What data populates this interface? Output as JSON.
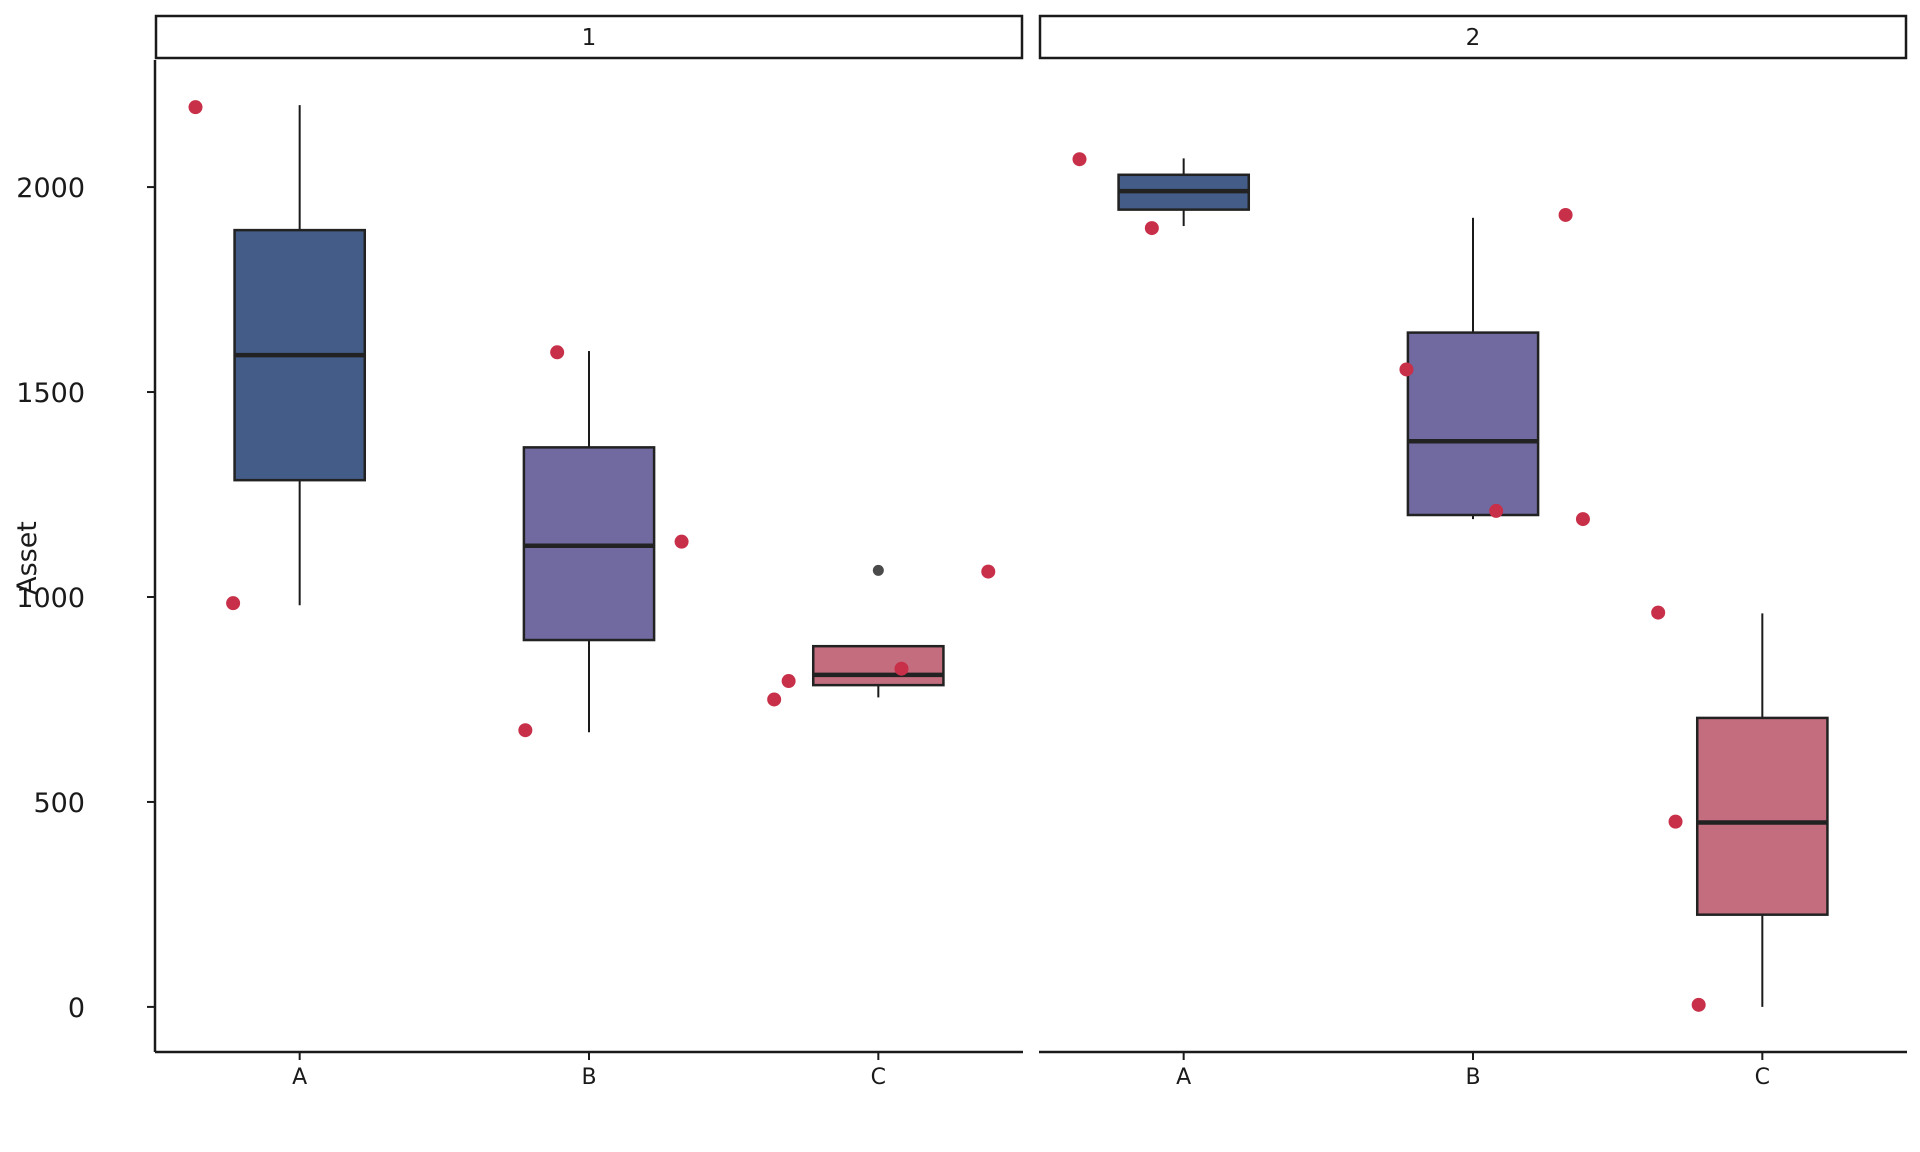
{
  "chart_data": {
    "type": "box",
    "ylabel": "Asset",
    "xlabel": "",
    "title": "",
    "y_ticks": [
      0,
      500,
      1000,
      1500,
      2000
    ],
    "ylim": [
      -110,
      2310
    ],
    "categories": [
      "A",
      "B",
      "C"
    ],
    "colors": {
      "A": "#445d88",
      "B": "#706aa0",
      "C": "#c46d7e",
      "points": "#c8304a",
      "outliers": "#4a4a4a"
    },
    "panels": [
      {
        "strip_label": "1",
        "boxes": [
          {
            "category": "A",
            "whisker_low": 980,
            "q1": 1285,
            "median": 1590,
            "q3": 1895,
            "whisker_high": 2200,
            "outliers": []
          },
          {
            "category": "B",
            "whisker_low": 670,
            "q1": 895,
            "median": 1125,
            "q3": 1365,
            "whisker_high": 1600,
            "outliers": []
          },
          {
            "category": "C",
            "whisker_low": 755,
            "q1": 785,
            "median": 810,
            "q3": 880,
            "whisker_high": 880,
            "outliers": [
              1065
            ]
          }
        ],
        "points": [
          {
            "category": "A",
            "offset": -0.36,
            "y": 2195
          },
          {
            "category": "A",
            "offset": -0.23,
            "y": 985
          },
          {
            "category": "B",
            "offset": -0.22,
            "y": 675
          },
          {
            "category": "B",
            "offset": -0.11,
            "y": 1597
          },
          {
            "category": "B",
            "offset": 0.32,
            "y": 1135
          },
          {
            "category": "C",
            "offset": -0.36,
            "y": 750
          },
          {
            "category": "C",
            "offset": -0.31,
            "y": 795
          },
          {
            "category": "C",
            "offset": 0.08,
            "y": 825
          },
          {
            "category": "C",
            "offset": 0.38,
            "y": 1062
          }
        ]
      },
      {
        "strip_label": "2",
        "boxes": [
          {
            "category": "A",
            "whisker_low": 1905,
            "q1": 1945,
            "median": 1990,
            "q3": 2030,
            "whisker_high": 2070,
            "outliers": []
          },
          {
            "category": "B",
            "whisker_low": 1190,
            "q1": 1200,
            "median": 1380,
            "q3": 1645,
            "whisker_high": 1925,
            "outliers": []
          },
          {
            "category": "C",
            "whisker_low": 0,
            "q1": 225,
            "median": 450,
            "q3": 705,
            "whisker_high": 960,
            "outliers": []
          }
        ],
        "points": [
          {
            "category": "A",
            "offset": -0.36,
            "y": 2068
          },
          {
            "category": "A",
            "offset": -0.11,
            "y": 1900
          },
          {
            "category": "B",
            "offset": -0.23,
            "y": 1555
          },
          {
            "category": "B",
            "offset": 0.08,
            "y": 1210
          },
          {
            "category": "B",
            "offset": 0.32,
            "y": 1932
          },
          {
            "category": "B",
            "offset": 0.38,
            "y": 1190
          },
          {
            "category": "C",
            "offset": -0.36,
            "y": 962
          },
          {
            "category": "C",
            "offset": -0.3,
            "y": 452
          },
          {
            "category": "C",
            "offset": -0.22,
            "y": 5
          }
        ]
      }
    ]
  }
}
